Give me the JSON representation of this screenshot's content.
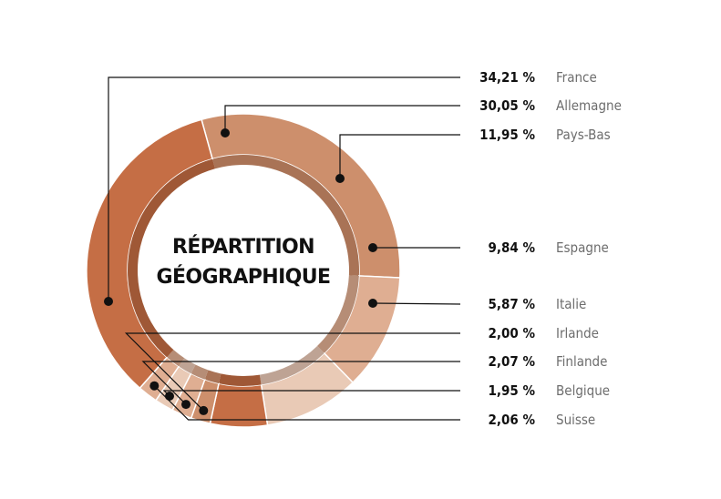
{
  "chart_data": {
    "type": "pie",
    "title_lines": [
      "RÉPARTITION",
      "GÉOGRAPHIQUE"
    ],
    "slices": [
      {
        "label": "France",
        "value": 34.21,
        "value_label": "34,21 %",
        "color": "#c56e45",
        "inner": "#9f5836"
      },
      {
        "label": "Allemagne",
        "value": 30.05,
        "value_label": "30,05 %",
        "color": "#cd8f6c",
        "inner": "#a97356"
      },
      {
        "label": "Pays-Bas",
        "value": 11.95,
        "value_label": "11,95 %",
        "color": "#dfae92",
        "inner": "#b68d76"
      },
      {
        "label": "Espagne",
        "value": 9.84,
        "value_label": "9,84 %",
        "color": "#e9cab6",
        "inner": "#bea394"
      },
      {
        "label": "Italie",
        "value": 5.87,
        "value_label": "5,87 %",
        "color": "#c56e45",
        "inner": "#9f5836"
      },
      {
        "label": "Irlande",
        "value": 2.0,
        "value_label": "2,00 %",
        "color": "#cd8f6c",
        "inner": "#a97356"
      },
      {
        "label": "Finlande",
        "value": 2.07,
        "value_label": "2,07 %",
        "color": "#dfae92",
        "inner": "#b68d76"
      },
      {
        "label": "Belgique",
        "value": 1.95,
        "value_label": "1,95 %",
        "color": "#e9cab6",
        "inner": "#bea394"
      },
      {
        "label": "Suisse",
        "value": 2.06,
        "value_label": "2,06 %",
        "color": "#dfae92",
        "inner": "#b68d76"
      }
    ]
  }
}
